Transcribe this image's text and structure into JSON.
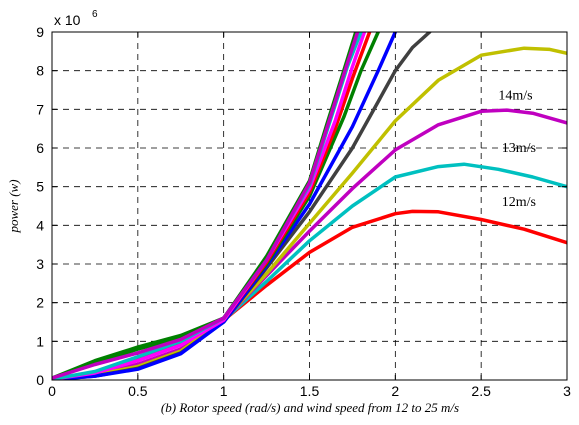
{
  "chart_data": {
    "type": "line",
    "title": "",
    "xlabel": "(b) Rotor speed (rad/s) and wind speed from 12 to 25 m/s",
    "ylabel": "power (w)",
    "y_exponent_label": "x 10",
    "y_exponent": "6",
    "xlim": [
      0,
      3
    ],
    "ylim": [
      0,
      9
    ],
    "x_ticks": [
      "0",
      "0.5",
      "1",
      "1.5",
      "2",
      "2.5",
      "3"
    ],
    "y_ticks": [
      "0",
      "1",
      "2",
      "3",
      "4",
      "5",
      "6",
      "7",
      "8",
      "9"
    ],
    "grid": true,
    "annotations": [
      {
        "text": "14m/s",
        "x": 2.6,
        "y": 7.25
      },
      {
        "text": "13m/s",
        "x": 2.62,
        "y": 5.9
      },
      {
        "text": "12m/s",
        "x": 2.62,
        "y": 4.5
      }
    ],
    "series": [
      {
        "color": "#ff0000",
        "x": [
          0,
          0.25,
          0.5,
          0.75,
          1.0,
          1.25,
          1.5,
          1.75,
          2.0,
          2.1,
          2.25,
          2.5,
          2.75,
          3.0
        ],
        "y": [
          0.02,
          0.15,
          0.4,
          0.8,
          1.55,
          2.45,
          3.3,
          3.95,
          4.3,
          4.36,
          4.35,
          4.15,
          3.9,
          3.55
        ]
      },
      {
        "color": "#00c0c0",
        "x": [
          0,
          0.25,
          0.5,
          0.75,
          1.0,
          1.25,
          1.5,
          1.75,
          2.0,
          2.25,
          2.4,
          2.6,
          2.8,
          3.0
        ],
        "y": [
          0.02,
          0.14,
          0.38,
          0.78,
          1.55,
          2.55,
          3.6,
          4.5,
          5.25,
          5.52,
          5.58,
          5.45,
          5.25,
          5.0
        ]
      },
      {
        "color": "#c000c0",
        "x": [
          0,
          0.25,
          0.5,
          0.75,
          1.0,
          1.25,
          1.5,
          1.75,
          2.0,
          2.25,
          2.5,
          2.65,
          2.8,
          3.0
        ],
        "y": [
          0.03,
          0.15,
          0.4,
          0.8,
          1.55,
          2.7,
          3.85,
          4.95,
          5.95,
          6.6,
          6.95,
          6.98,
          6.9,
          6.65
        ]
      },
      {
        "color": "#c0c000",
        "x": [
          0,
          0.25,
          0.5,
          0.75,
          1.0,
          1.25,
          1.5,
          1.75,
          2.0,
          2.25,
          2.5,
          2.75,
          2.9,
          3.0
        ],
        "y": [
          0.02,
          0.13,
          0.35,
          0.75,
          1.55,
          2.75,
          4.05,
          5.35,
          6.7,
          7.75,
          8.4,
          8.58,
          8.55,
          8.45
        ]
      },
      {
        "color": "#404040",
        "x": [
          0,
          0.25,
          0.5,
          0.75,
          1.0,
          1.25,
          1.5,
          1.75,
          1.9,
          2.0,
          2.1,
          2.2
        ],
        "y": [
          0.01,
          0.1,
          0.3,
          0.7,
          1.5,
          2.9,
          4.35,
          6.0,
          7.2,
          8.0,
          8.6,
          9.0
        ]
      },
      {
        "color": "#0000ff",
        "x": [
          0,
          0.25,
          0.5,
          0.75,
          1.0,
          1.25,
          1.5,
          1.75,
          1.9,
          2.0
        ],
        "y": [
          0.01,
          0.1,
          0.28,
          0.68,
          1.5,
          2.95,
          4.55,
          6.55,
          8.0,
          9.0
        ]
      },
      {
        "color": "#008000",
        "x": [
          0,
          0.25,
          0.5,
          0.75,
          1.0,
          1.25,
          1.5,
          1.7,
          1.8,
          1.9
        ],
        "y": [
          0.05,
          0.45,
          0.8,
          1.1,
          1.6,
          3.0,
          4.75,
          6.8,
          8.0,
          9.0
        ]
      },
      {
        "color": "#ff0000",
        "x": [
          0,
          0.25,
          0.5,
          0.75,
          1.0,
          1.25,
          1.5,
          1.65,
          1.75,
          1.85
        ],
        "y": [
          0.02,
          0.2,
          0.55,
          0.95,
          1.55,
          3.05,
          4.85,
          6.5,
          7.8,
          9.0
        ]
      },
      {
        "color": "#ff00ff",
        "x": [
          0,
          0.25,
          0.5,
          0.75,
          1.0,
          1.25,
          1.5,
          1.65,
          1.75,
          1.82
        ],
        "y": [
          0.02,
          0.18,
          0.5,
          0.9,
          1.55,
          3.1,
          4.95,
          6.7,
          8.1,
          9.0
        ]
      },
      {
        "color": "#00c0c0",
        "x": [
          0,
          0.25,
          0.5,
          0.75,
          1.0,
          1.25,
          1.5,
          1.62,
          1.72,
          1.8
        ],
        "y": [
          0.02,
          0.22,
          0.6,
          1.0,
          1.6,
          3.15,
          5.05,
          6.7,
          8.1,
          9.0
        ]
      },
      {
        "color": "#008000",
        "x": [
          0,
          0.25,
          0.5,
          0.75,
          1.0,
          1.25,
          1.5,
          1.6,
          1.7,
          1.77
        ],
        "y": [
          0.05,
          0.5,
          0.85,
          1.15,
          1.6,
          3.2,
          5.15,
          6.6,
          8.0,
          9.0
        ]
      },
      {
        "color": "#c000c0",
        "x": [
          0,
          0.25,
          0.5,
          0.75,
          1.0,
          1.25,
          1.5,
          1.6,
          1.7,
          1.78
        ],
        "y": [
          0.05,
          0.4,
          0.7,
          1.05,
          1.6,
          3.1,
          5.1,
          6.5,
          7.9,
          9.0
        ]
      }
    ]
  }
}
